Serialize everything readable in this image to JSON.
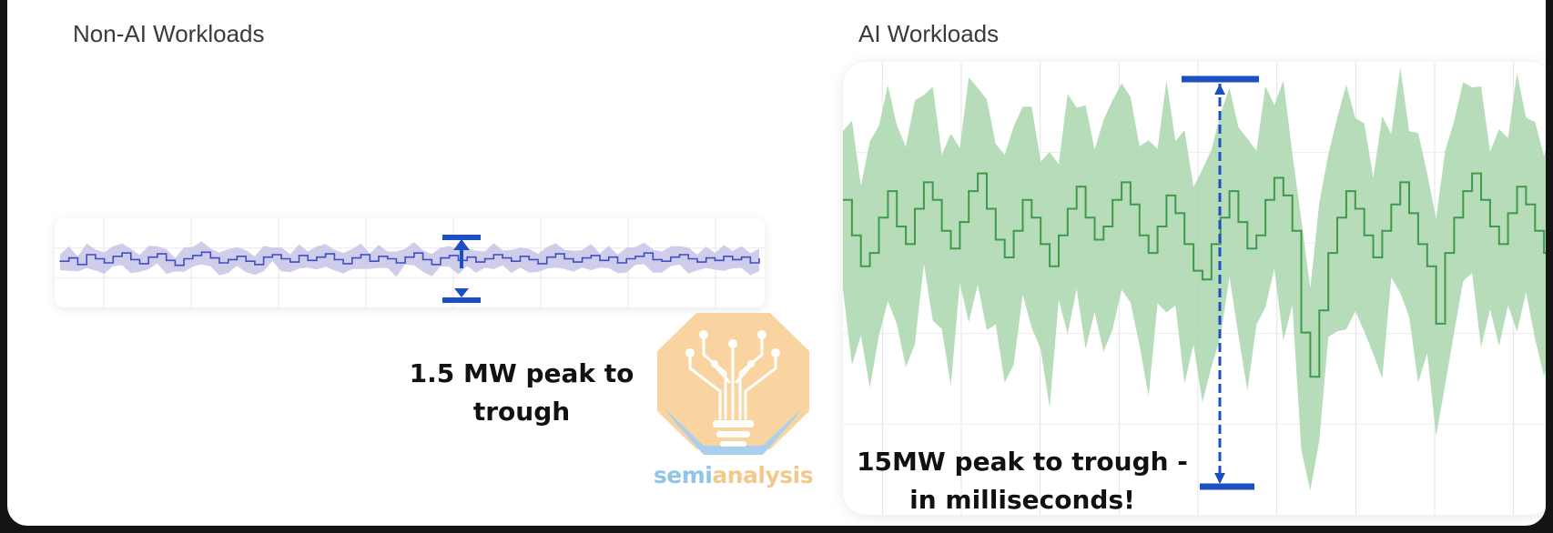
{
  "chart_data": [
    {
      "type": "line",
      "title": "Non-AI Workloads",
      "ylim": [
        0,
        100
      ],
      "grid": true,
      "colors": {
        "band": "#c7c4e6",
        "line": "#3f4fc4",
        "marker": "#1c4fc4"
      },
      "annotation": "1.5 MW peak to trough",
      "series": [
        {
          "values": [
            52,
            56,
            48,
            60,
            55,
            50,
            58,
            62,
            54,
            49,
            57,
            61,
            53,
            47,
            55,
            59,
            63,
            56,
            50,
            54,
            58,
            52,
            48,
            57,
            60,
            55,
            51,
            59,
            53,
            57,
            61,
            54,
            49,
            56,
            60,
            52,
            58,
            55,
            50,
            57,
            62,
            54,
            48,
            56,
            59,
            53,
            57,
            51,
            55,
            60,
            56,
            52,
            58,
            54,
            49,
            57,
            61,
            55,
            51,
            56,
            59,
            53,
            57,
            50,
            55,
            58,
            62,
            54,
            52,
            57,
            60,
            55,
            51,
            56,
            53,
            58,
            54,
            57,
            50,
            55
          ]
        }
      ]
    },
    {
      "type": "line",
      "title": "AI Workloads",
      "ylim": [
        0,
        100
      ],
      "grid": true,
      "colors": {
        "band": "#a9d6ad",
        "line": "#3f9a4a",
        "marker": "#1c4fc4"
      },
      "annotation": "15MW peak to trough - in milliseconds!",
      "series": [
        {
          "values": [
            70,
            62,
            55,
            58,
            66,
            72,
            64,
            60,
            68,
            74,
            70,
            63,
            59,
            65,
            72,
            76,
            68,
            61,
            57,
            63,
            70,
            66,
            60,
            55,
            62,
            68,
            73,
            66,
            61,
            64,
            70,
            74,
            69,
            62,
            58,
            64,
            71,
            67,
            60,
            54,
            52,
            60,
            66,
            72,
            65,
            59,
            62,
            70,
            75,
            71,
            63,
            40,
            30,
            45,
            58,
            66,
            72,
            68,
            62,
            57,
            63,
            69,
            74,
            67,
            60,
            55,
            42,
            58,
            66,
            72,
            76,
            70,
            64,
            60,
            67,
            73,
            69,
            63,
            58,
            65
          ]
        }
      ]
    }
  ],
  "titles": {
    "left": "Non-AI Workloads",
    "right": "AI Workloads"
  },
  "captions": {
    "left_line1": "1.5 MW peak to",
    "left_line2": "trough",
    "right_line1": "15MW peak to trough -",
    "right_line2": "in milliseconds!"
  },
  "logo": {
    "part1": "semi",
    "part2": "analysis",
    "icon": "lightbulb-circuit-icon",
    "colors": {
      "body": "#f9d4a0",
      "base": "#a8cfee"
    }
  }
}
